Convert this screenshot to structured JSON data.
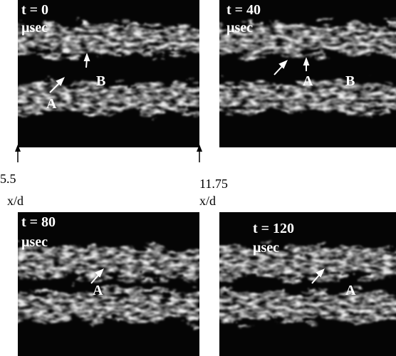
{
  "panels": [
    {
      "time": "t = 0",
      "unit": "µsec",
      "labels": [
        "A",
        "B"
      ]
    },
    {
      "time": "t = 40",
      "unit": "µsec",
      "labels": [
        "A",
        "B"
      ]
    },
    {
      "time": "t = 80",
      "unit": "µsec",
      "labels": [
        "A"
      ]
    },
    {
      "time": "t = 120",
      "unit": "µsec",
      "labels": [
        "A"
      ]
    }
  ],
  "axis": {
    "start": "5.5",
    "end": "11.75",
    "start_unit": "x/d",
    "end_unit": "x/d"
  }
}
